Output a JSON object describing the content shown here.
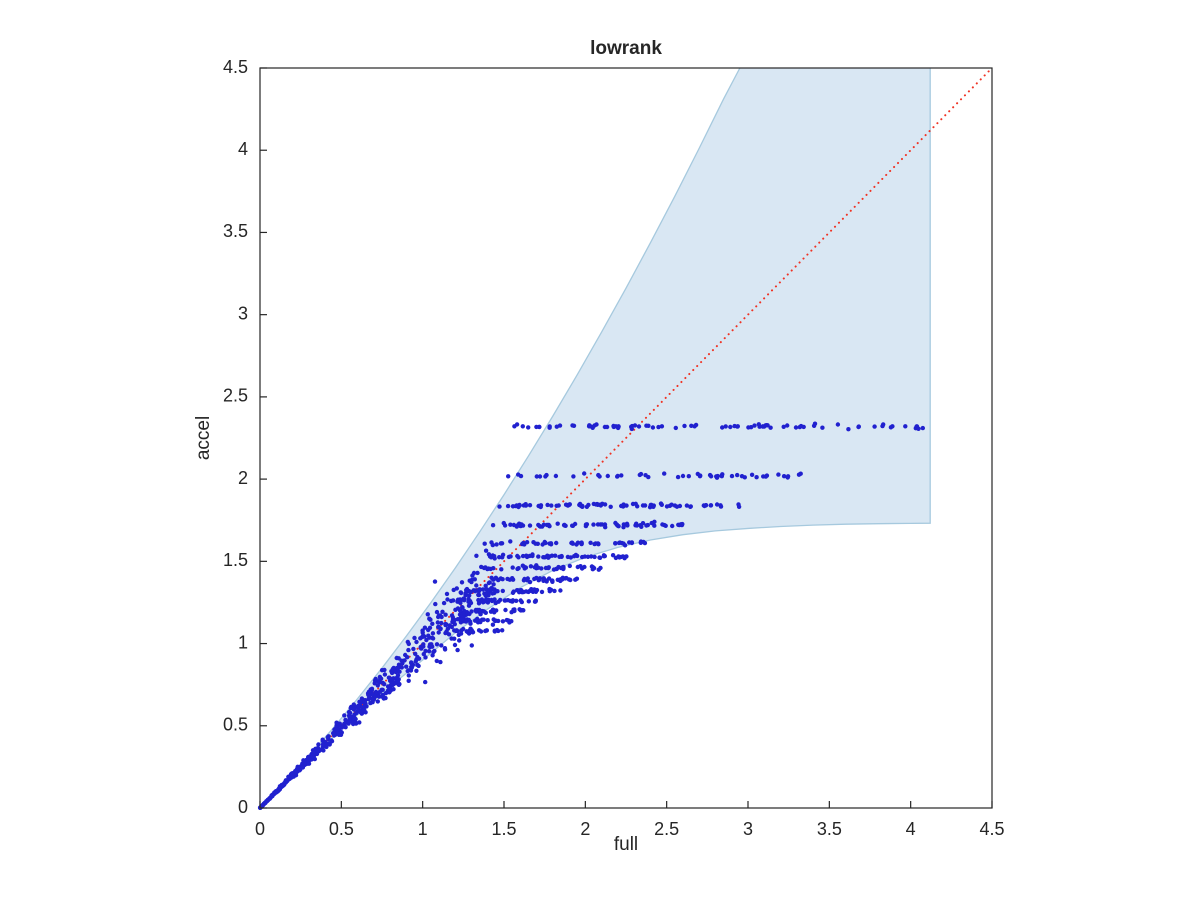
{
  "window": {
    "background": "#ffffff"
  },
  "chart_data": {
    "type": "scatter",
    "title": "lowrank",
    "xlabel": "full",
    "ylabel": "accel",
    "xlim": [
      0,
      4.5
    ],
    "ylim": [
      0,
      4.5
    ],
    "xticks": [
      0,
      0.5,
      1,
      1.5,
      2,
      2.5,
      3,
      3.5,
      4,
      4.5
    ],
    "xtick_labels": [
      "0",
      "0.5",
      "1",
      "1.5",
      "2",
      "2.5",
      "3",
      "3.5",
      "4",
      "4.5"
    ],
    "yticks": [
      0,
      0.5,
      1,
      1.5,
      2,
      2.5,
      3,
      3.5,
      4,
      4.5
    ],
    "ytick_labels": [
      "0",
      "0.5",
      "1",
      "1.5",
      "2",
      "2.5",
      "3",
      "3.5",
      "4",
      "4.5"
    ],
    "grid": false,
    "legend": null,
    "axes_color": "#262626",
    "identity_line": {
      "from": [
        0,
        0
      ],
      "to": [
        4.5,
        4.5
      ],
      "color": "#ef3324",
      "style": "dotted"
    },
    "envelope": {
      "fill": "#d9e7f3",
      "edge": "#a6c9de",
      "right_edge_x": 4.12,
      "top_y": 4.5,
      "lower": [
        [
          0,
          0
        ],
        [
          0.2,
          0.195
        ],
        [
          0.4,
          0.385
        ],
        [
          0.6,
          0.567
        ],
        [
          0.8,
          0.74
        ],
        [
          1.0,
          0.9
        ],
        [
          1.2,
          1.065
        ],
        [
          1.4,
          1.21
        ],
        [
          1.6,
          1.34
        ],
        [
          1.8,
          1.445
        ],
        [
          2.0,
          1.525
        ],
        [
          2.2,
          1.585
        ],
        [
          2.4,
          1.63
        ],
        [
          2.6,
          1.662
        ],
        [
          2.8,
          1.685
        ],
        [
          3.0,
          1.7
        ],
        [
          3.2,
          1.712
        ],
        [
          3.4,
          1.72
        ],
        [
          3.6,
          1.726
        ],
        [
          3.8,
          1.729
        ],
        [
          4.0,
          1.731
        ],
        [
          4.12,
          1.732
        ]
      ],
      "upper": [
        [
          0,
          0
        ],
        [
          0.15,
          0.154
        ],
        [
          0.3,
          0.316
        ],
        [
          0.45,
          0.486
        ],
        [
          0.6,
          0.665
        ],
        [
          0.75,
          0.851
        ],
        [
          0.9,
          1.046
        ],
        [
          1.05,
          1.248
        ],
        [
          1.2,
          1.459
        ],
        [
          1.35,
          1.678
        ],
        [
          1.5,
          1.905
        ],
        [
          1.65,
          2.14
        ],
        [
          1.8,
          2.383
        ],
        [
          1.95,
          2.634
        ],
        [
          2.1,
          2.894
        ],
        [
          2.25,
          3.161
        ],
        [
          2.4,
          3.437
        ],
        [
          2.55,
          3.72
        ],
        [
          2.7,
          4.012
        ],
        [
          2.85,
          4.312
        ],
        [
          2.95,
          4.5
        ]
      ]
    },
    "scatter_style": {
      "color": "#2121cf",
      "marker": "dot",
      "radius": 2.2
    },
    "scatter_generator": {
      "seed": 42,
      "cluster": {
        "n": 620,
        "x_max": 1.45,
        "x_pow": 1.15,
        "noise_base": 0.03,
        "noise_slope": 0.045,
        "bias_slope": -0.025
      },
      "band_jitter": 0.006,
      "band_x_pow": 0.85,
      "bands": [
        {
          "y": 2.32,
          "x_min": 1.55,
          "x_max": 4.12,
          "n": 85
        },
        {
          "y": 2.02,
          "x_min": 1.5,
          "x_max": 3.33,
          "n": 50
        },
        {
          "y": 1.84,
          "x_min": 1.45,
          "x_max": 2.95,
          "n": 78
        },
        {
          "y": 1.72,
          "x_min": 1.41,
          "x_max": 2.6,
          "n": 68
        },
        {
          "y": 1.61,
          "x_min": 1.37,
          "x_max": 2.42,
          "n": 52
        },
        {
          "y": 1.53,
          "x_min": 1.33,
          "x_max": 2.28,
          "n": 54
        },
        {
          "y": 1.46,
          "x_min": 1.3,
          "x_max": 2.1,
          "n": 40
        },
        {
          "y": 1.39,
          "x_min": 1.27,
          "x_max": 1.97,
          "n": 42
        },
        {
          "y": 1.32,
          "x_min": 1.23,
          "x_max": 1.85,
          "n": 40
        },
        {
          "y": 1.26,
          "x_min": 1.2,
          "x_max": 1.74,
          "n": 32
        },
        {
          "y": 1.2,
          "x_min": 1.17,
          "x_max": 1.64,
          "n": 28
        },
        {
          "y": 1.14,
          "x_min": 1.13,
          "x_max": 1.56,
          "n": 26
        },
        {
          "y": 1.08,
          "x_min": 1.09,
          "x_max": 1.49,
          "n": 22
        }
      ]
    }
  }
}
